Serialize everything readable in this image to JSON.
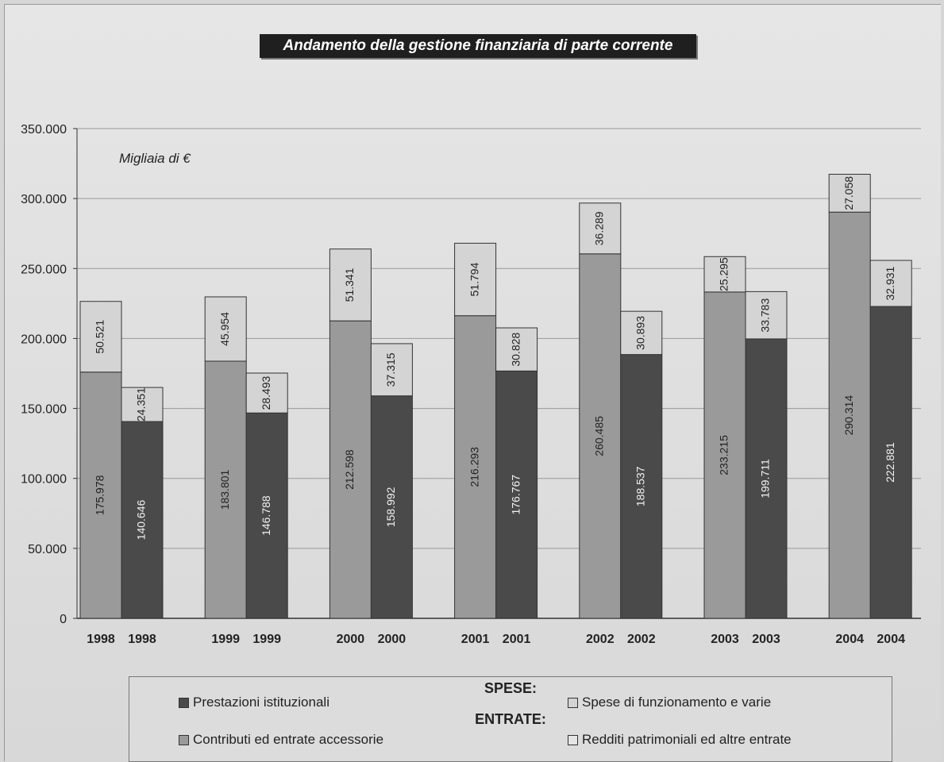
{
  "chart_data": {
    "type": "bar",
    "title": "Andamento della gestione finanziaria di parte corrente",
    "annotation": "Migliaia di €",
    "categories": [
      "1998",
      "1998",
      "1999",
      "1999",
      "2000",
      "2000",
      "2001",
      "2001",
      "2002",
      "2002",
      "2003",
      "2003",
      "2004",
      "2004"
    ],
    "stacks": [
      {
        "year": "1998",
        "group": "entrate",
        "bottom": 175978,
        "top": 50521,
        "bottom_label": "175.978",
        "top_label": "50.521"
      },
      {
        "year": "1998",
        "group": "spese",
        "bottom": 140646,
        "top": 24351,
        "bottom_label": "140.646",
        "top_label": "24.351"
      },
      {
        "year": "1999",
        "group": "entrate",
        "bottom": 183801,
        "top": 45954,
        "bottom_label": "183.801",
        "top_label": "45.954"
      },
      {
        "year": "1999",
        "group": "spese",
        "bottom": 146788,
        "top": 28493,
        "bottom_label": "146.788",
        "top_label": "28.493"
      },
      {
        "year": "2000",
        "group": "entrate",
        "bottom": 212598,
        "top": 51341,
        "bottom_label": "212.598",
        "top_label": "51.341"
      },
      {
        "year": "2000",
        "group": "spese",
        "bottom": 158992,
        "top": 37315,
        "bottom_label": "158.992",
        "top_label": "37.315"
      },
      {
        "year": "2001",
        "group": "entrate",
        "bottom": 216293,
        "top": 51794,
        "bottom_label": "216.293",
        "top_label": "51.794"
      },
      {
        "year": "2001",
        "group": "spese",
        "bottom": 176767,
        "top": 30828,
        "bottom_label": "176.767",
        "top_label": "30.828"
      },
      {
        "year": "2002",
        "group": "entrate",
        "bottom": 260485,
        "top": 36289,
        "bottom_label": "260.485",
        "top_label": "36.289"
      },
      {
        "year": "2002",
        "group": "spese",
        "bottom": 188537,
        "top": 30893,
        "bottom_label": "188.537",
        "top_label": "30.893"
      },
      {
        "year": "2003",
        "group": "entrate",
        "bottom": 233215,
        "top": 25295,
        "bottom_label": "233.215",
        "top_label": "25.295"
      },
      {
        "year": "2003",
        "group": "spese",
        "bottom": 199711,
        "top": 33783,
        "bottom_label": "199.711",
        "top_label": "33.783"
      },
      {
        "year": "2004",
        "group": "entrate",
        "bottom": 290314,
        "top": 27058,
        "bottom_label": "290.314",
        "top_label": "27.058"
      },
      {
        "year": "2004",
        "group": "spese",
        "bottom": 222881,
        "top": 32931,
        "bottom_label": "222.881",
        "top_label": "32.931"
      }
    ],
    "ylim": [
      0,
      350000
    ],
    "yticks": [
      0,
      50000,
      100000,
      150000,
      200000,
      250000,
      300000,
      350000
    ],
    "ytick_labels": [
      "0",
      "50.000",
      "100.000",
      "150.000",
      "200.000",
      "250.000",
      "300.000",
      "350.000"
    ],
    "grid": true,
    "legend": {
      "position": "bottom",
      "header_spese": "SPESE:",
      "header_entrate": "ENTRATE:",
      "items": {
        "spese_prestazioni": "Prestazioni istituzionali",
        "spese_funzionamento": "Spese di funzionamento e varie",
        "entrate_contributi": "Contributi ed entrate accessorie",
        "entrate_redditi": "Redditi patrimoniali ed altre entrate"
      }
    },
    "colors": {
      "entrate_bottom": "#9a9a9a",
      "spese_bottom": "#4a4a4a",
      "top_segment": "#d4d4d4",
      "bar_edge": "#333333",
      "grid": "#999999"
    }
  }
}
